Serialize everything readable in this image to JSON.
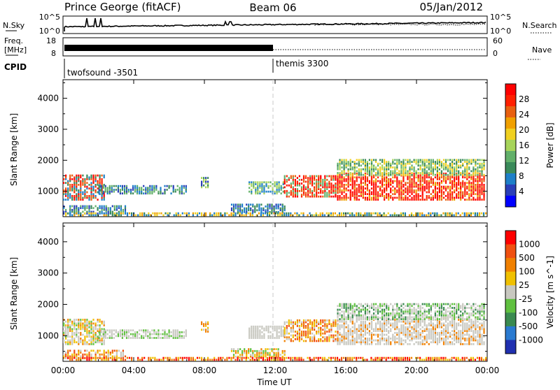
{
  "header": {
    "station": "Prince George (fitACF)",
    "beam": "Beam 06",
    "date": "05/Jan/2012"
  },
  "strips": {
    "nsky": {
      "label": "N.Sky",
      "ticks": [
        "10^5",
        "10^0"
      ]
    },
    "nsearch": {
      "label": "N.Search",
      "ticks": [
        "10^5",
        "10^0"
      ]
    },
    "freq": {
      "label_line1": "Freq.",
      "label_line2": "[MHz]",
      "ticks": [
        "18",
        "8"
      ]
    },
    "nave": {
      "label": "Nave",
      "ticks": [
        "60",
        "0"
      ]
    },
    "cpid": {
      "label": "CPID",
      "programs": [
        "twofsound -3501",
        "themis 3300"
      ]
    }
  },
  "colors": {
    "power": [
      "#0000ff",
      "#2a3fb8",
      "#1e7fc8",
      "#3a8a5a",
      "#62b06a",
      "#a7d45a",
      "#f0d020",
      "#f0a000",
      "#e86010",
      "#ff2000",
      "#ff0000"
    ],
    "velocity": [
      "#2030b0",
      "#2a7ad0",
      "#3a8a50",
      "#60c040",
      "#c8c8c0",
      "#f0c000",
      "#f08000",
      "#f05010",
      "#ff0000"
    ],
    "guide": "#c8c8c8"
  },
  "chart_data": [
    {
      "type": "heatmap",
      "panel": "power",
      "xlabel": "",
      "ylabel": "Slant Range [km]",
      "xlim": [
        0,
        24
      ],
      "ylim": [
        180,
        4600
      ],
      "yticks": [
        "1000",
        "2000",
        "3000",
        "4000"
      ],
      "colorbar_label": "Power [dB]",
      "colorbar_ticks": [
        "4",
        "8",
        "12",
        "16",
        "20",
        "24",
        "28"
      ]
    },
    {
      "type": "heatmap",
      "panel": "velocity",
      "xlabel": "Time UT",
      "ylabel": "Slant Range [km]",
      "xlim": [
        0,
        24
      ],
      "ylim": [
        180,
        4600
      ],
      "xticks": [
        "00:00",
        "04:00",
        "08:00",
        "12:00",
        "16:00",
        "20:00",
        "00:00"
      ],
      "yticks": [
        "1000",
        "2000",
        "3000",
        "4000"
      ],
      "colorbar_label": "Velocity [m s^-1]",
      "colorbar_ticks": [
        "1000",
        "500",
        "100",
        "25",
        "-25",
        "-100",
        "-500",
        "-1000"
      ]
    }
  ]
}
